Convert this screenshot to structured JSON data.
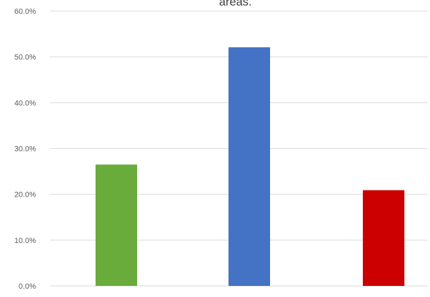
{
  "chart_data": {
    "type": "bar",
    "title": "areas.",
    "xlabel": "",
    "ylabel": "",
    "categories": [
      "",
      "",
      ""
    ],
    "values": [
      26.5,
      52.1,
      20.9
    ],
    "colors": [
      "#6aac3c",
      "#4472c4",
      "#cc0000"
    ],
    "ylim": [
      0,
      60
    ],
    "yticks": [
      {
        "value": 0,
        "label": "0.0%"
      },
      {
        "value": 10,
        "label": "10.0%"
      },
      {
        "value": 20,
        "label": "20.0%"
      },
      {
        "value": 30,
        "label": "30.0%"
      },
      {
        "value": 40,
        "label": "40.0%"
      },
      {
        "value": 50,
        "label": "50.0%"
      },
      {
        "value": 60,
        "label": "60.0%"
      }
    ],
    "grid": true,
    "legend": "none"
  }
}
